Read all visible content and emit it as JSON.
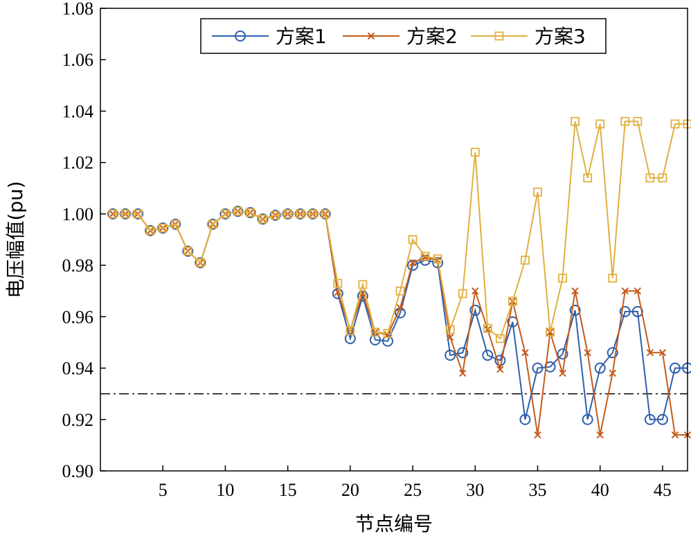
{
  "chart_data": {
    "type": "line",
    "xlabel": "节点编号",
    "ylabel": "电压幅值(pu)",
    "xlim": [
      0,
      47
    ],
    "ylim": [
      0.9,
      1.08
    ],
    "xticks": [
      5,
      10,
      15,
      20,
      25,
      30,
      35,
      40,
      45
    ],
    "yticks": [
      "0.90",
      "0.92",
      "0.94",
      "0.96",
      "0.98",
      "1.00",
      "1.02",
      "1.04",
      "1.06",
      "1.08"
    ],
    "x": [
      1,
      2,
      3,
      4,
      5,
      6,
      7,
      8,
      9,
      10,
      11,
      12,
      13,
      14,
      15,
      16,
      17,
      18,
      19,
      20,
      21,
      22,
      23,
      24,
      25,
      26,
      27,
      28,
      29,
      30,
      31,
      32,
      33,
      34,
      35,
      36,
      37,
      38,
      39,
      40,
      41,
      42,
      43,
      44,
      45,
      46,
      47
    ],
    "reference_line": {
      "y": 0.93,
      "style": "dash-dot",
      "color": "#000000"
    },
    "legend_position": "top-right",
    "series": [
      {
        "name": "方案1",
        "color": "#2e5faa",
        "marker": "circle",
        "values": [
          1.0,
          1.0,
          1.0,
          0.9935,
          0.9945,
          0.996,
          0.9855,
          0.981,
          0.996,
          1.0,
          1.001,
          1.0005,
          0.998,
          0.9995,
          1.0,
          1.0,
          1.0,
          1.0,
          0.969,
          0.9515,
          0.968,
          0.951,
          0.9505,
          0.9615,
          0.98,
          0.982,
          0.981,
          0.945,
          0.946,
          0.9625,
          0.945,
          0.943,
          0.958,
          0.92,
          0.94,
          0.9405,
          0.9455,
          0.9625,
          0.92,
          0.94,
          0.946,
          0.962,
          0.962,
          0.92,
          0.92,
          0.94,
          0.94
        ]
      },
      {
        "name": "方案2",
        "color": "#c55a1c",
        "marker": "x",
        "values": [
          1.0,
          1.0,
          1.0,
          0.9935,
          0.9945,
          0.996,
          0.9855,
          0.981,
          0.996,
          1.0,
          1.001,
          1.0005,
          0.998,
          0.9995,
          1.0,
          1.0,
          1.0,
          1.0,
          0.9695,
          0.955,
          0.969,
          0.954,
          0.953,
          0.9635,
          0.981,
          0.983,
          0.982,
          0.952,
          0.938,
          0.97,
          0.955,
          0.9395,
          0.966,
          0.946,
          0.914,
          0.954,
          0.938,
          0.97,
          0.946,
          0.914,
          0.938,
          0.97,
          0.97,
          0.946,
          0.946,
          0.914,
          0.914
        ]
      },
      {
        "name": "方案3",
        "color": "#e0b040",
        "marker": "square",
        "values": [
          1.0,
          1.0,
          1.0,
          0.9935,
          0.9945,
          0.996,
          0.9855,
          0.981,
          0.996,
          1.0,
          1.001,
          1.0005,
          0.998,
          0.9995,
          1.0,
          1.0,
          1.0,
          1.0,
          0.973,
          0.9545,
          0.9725,
          0.954,
          0.9535,
          0.97,
          0.99,
          0.9835,
          0.9825,
          0.955,
          0.969,
          1.024,
          0.9555,
          0.9515,
          0.966,
          0.982,
          1.0085,
          0.954,
          0.975,
          1.036,
          1.014,
          1.035,
          0.975,
          1.036,
          1.036,
          1.014,
          1.014,
          1.035,
          1.035
        ]
      }
    ]
  }
}
